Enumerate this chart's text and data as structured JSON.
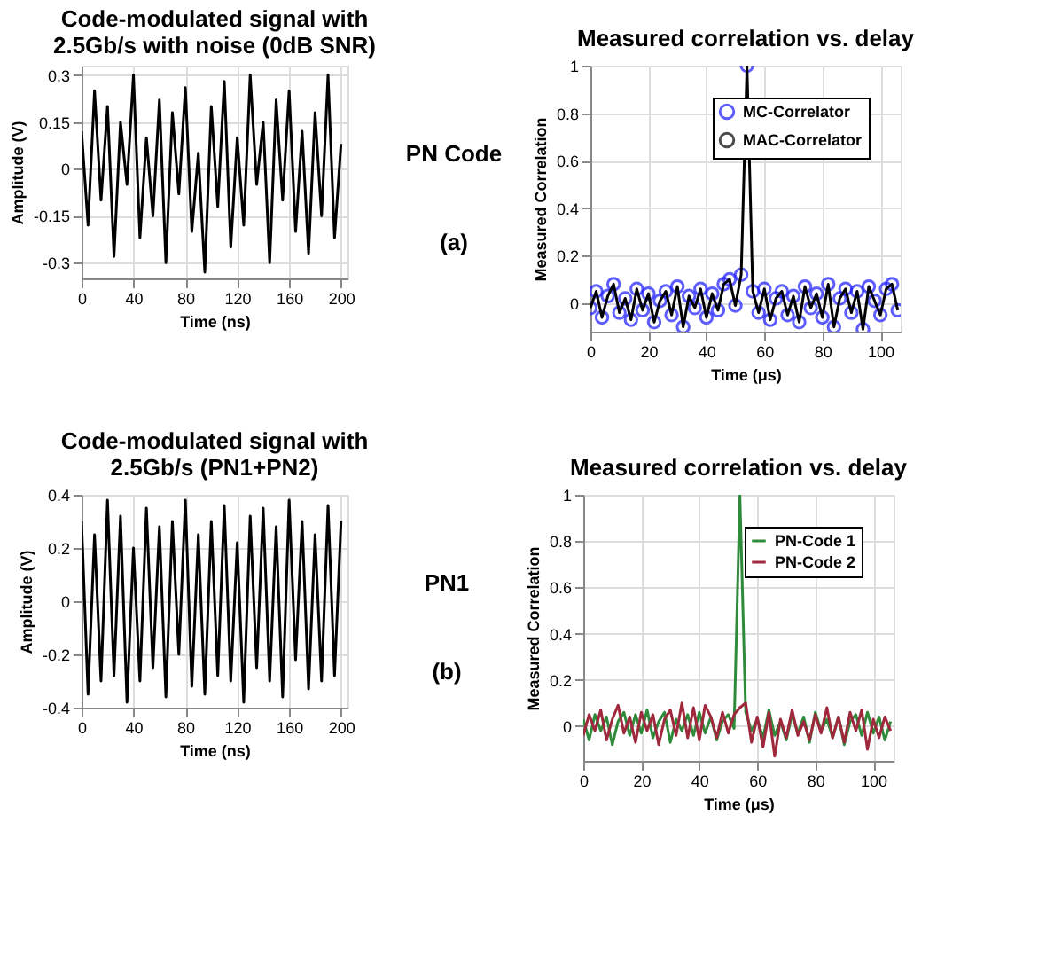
{
  "chart_data": [
    {
      "type": "line",
      "title": "Code-modulated signal with\n2.5Gb/s with noise (0dB SNR)",
      "xlabel": "Time (ns)",
      "ylabel": "Amplitude (V)",
      "xlim": [
        0,
        205
      ],
      "xticks": [
        0,
        40,
        80,
        120,
        160,
        200
      ],
      "ylim": [
        -0.35,
        0.33
      ],
      "yticks": [
        -0.3,
        -0.15,
        0,
        0.15,
        0.3
      ],
      "grid": true,
      "x": [
        0,
        5,
        10,
        15,
        20,
        25,
        30,
        35,
        40,
        45,
        50,
        55,
        60,
        65,
        70,
        75,
        80,
        85,
        90,
        95,
        100,
        105,
        110,
        115,
        120,
        125,
        130,
        135,
        140,
        145,
        150,
        155,
        160,
        165,
        170,
        175,
        180,
        185,
        190,
        195,
        200
      ],
      "series": [
        {
          "color": "#000000",
          "values": [
            0.12,
            -0.18,
            0.25,
            -0.1,
            0.2,
            -0.28,
            0.15,
            -0.05,
            0.3,
            -0.22,
            0.1,
            -0.15,
            0.22,
            -0.3,
            0.18,
            -0.08,
            0.26,
            -0.2,
            0.05,
            -0.33,
            0.2,
            -0.12,
            0.28,
            -0.25,
            0.1,
            -0.18,
            0.3,
            -0.05,
            0.15,
            -0.3,
            0.22,
            -0.1,
            0.25,
            -0.2,
            0.12,
            -0.27,
            0.18,
            -0.15,
            0.3,
            -0.22,
            0.08
          ]
        }
      ]
    },
    {
      "type": "other",
      "annotations": [
        "PN Code",
        "(a)"
      ]
    },
    {
      "type": "line",
      "title": "Measured correlation vs. delay",
      "xlabel": "Time (μs)",
      "ylabel": "Measured Correlation",
      "xlim": [
        0,
        107
      ],
      "xticks": [
        0,
        20,
        40,
        60,
        80,
        100
      ],
      "ylim": [
        -0.12,
        1
      ],
      "yticks": [
        0,
        0.2,
        0.4,
        0.6,
        0.8,
        1
      ],
      "grid": true,
      "legend": "top right",
      "x": [
        0,
        2,
        4,
        6,
        8,
        10,
        12,
        14,
        16,
        18,
        20,
        22,
        24,
        26,
        28,
        30,
        32,
        34,
        36,
        38,
        40,
        42,
        44,
        46,
        48,
        50,
        52,
        54,
        56,
        58,
        60,
        62,
        64,
        66,
        68,
        70,
        72,
        74,
        76,
        78,
        80,
        82,
        84,
        86,
        88,
        90,
        92,
        94,
        96,
        98,
        100,
        102,
        104,
        106
      ],
      "series": [
        {
          "name": "MC-Correlator",
          "type": "scatter",
          "marker": "circle",
          "color": "#1a1aff",
          "values": [
            -0.02,
            0.05,
            -0.06,
            0.03,
            0.08,
            -0.04,
            0.02,
            -0.07,
            0.06,
            -0.03,
            0.04,
            -0.08,
            0.01,
            0.05,
            -0.05,
            0.07,
            -0.1,
            0.03,
            -0.02,
            0.06,
            -0.06,
            0.04,
            -0.03,
            0.08,
            0.1,
            -0.01,
            0.12,
            1,
            0.05,
            -0.04,
            0.06,
            -0.07,
            0.02,
            0.05,
            -0.05,
            0.03,
            -0.08,
            0.07,
            -0.02,
            0.04,
            -0.06,
            0.08,
            -0.1,
            0.02,
            0.06,
            -0.04,
            0.05,
            -0.11,
            0.07,
            0.01,
            -0.05,
            0.06,
            0.08,
            -0.03
          ]
        },
        {
          "name": "MAC-Correlator",
          "type": "line",
          "color": "#000000",
          "values": [
            -0.02,
            0.05,
            -0.06,
            0.03,
            0.08,
            -0.04,
            0.02,
            -0.07,
            0.06,
            -0.03,
            0.04,
            -0.08,
            0.01,
            0.05,
            -0.05,
            0.07,
            -0.1,
            0.03,
            -0.02,
            0.06,
            -0.06,
            0.04,
            -0.03,
            0.08,
            0.1,
            -0.01,
            0.12,
            1,
            0.05,
            -0.04,
            0.06,
            -0.07,
            0.02,
            0.05,
            -0.05,
            0.03,
            -0.08,
            0.07,
            -0.02,
            0.04,
            -0.06,
            0.08,
            -0.1,
            0.02,
            0.06,
            -0.04,
            0.05,
            -0.11,
            0.07,
            0.01,
            -0.05,
            0.06,
            0.08,
            -0.03
          ]
        }
      ]
    },
    {
      "type": "line",
      "title": "Code-modulated signal with\n2.5Gb/s (PN1+PN2)",
      "xlabel": "Time (ns)",
      "ylabel": "Amplitude (V)",
      "xlim": [
        0,
        205
      ],
      "xticks": [
        0,
        40,
        80,
        120,
        160,
        200
      ],
      "ylim": [
        -0.4,
        0.4
      ],
      "yticks": [
        -0.4,
        -0.2,
        0,
        0.2,
        0.4
      ],
      "grid": true,
      "x": [
        0,
        5,
        10,
        15,
        20,
        25,
        30,
        35,
        40,
        45,
        50,
        55,
        60,
        65,
        70,
        75,
        80,
        85,
        90,
        95,
        100,
        105,
        110,
        115,
        120,
        125,
        130,
        135,
        140,
        145,
        150,
        155,
        160,
        165,
        170,
        175,
        180,
        185,
        190,
        195,
        200
      ],
      "series": [
        {
          "color": "#000000",
          "values": [
            0.3,
            -0.35,
            0.25,
            -0.3,
            0.38,
            -0.28,
            0.32,
            -0.38,
            0.2,
            -0.3,
            0.35,
            -0.25,
            0.28,
            -0.36,
            0.3,
            -0.2,
            0.38,
            -0.32,
            0.25,
            -0.35,
            0.3,
            -0.28,
            0.36,
            -0.3,
            0.22,
            -0.38,
            0.32,
            -0.25,
            0.35,
            -0.3,
            0.28,
            -0.36,
            0.38,
            -0.22,
            0.3,
            -0.33,
            0.25,
            -0.3,
            0.36,
            -0.28,
            0.3
          ]
        }
      ]
    },
    {
      "type": "other",
      "annotations": [
        "PN1",
        "(b)"
      ]
    },
    {
      "type": "line",
      "title": "Measured correlation vs. delay",
      "xlabel": "Time (μs)",
      "ylabel": "Measured Correlation",
      "xlim": [
        0,
        107
      ],
      "xticks": [
        0,
        20,
        40,
        60,
        80,
        100
      ],
      "ylim": [
        -0.15,
        1
      ],
      "yticks": [
        0,
        0.2,
        0.4,
        0.6,
        0.8,
        1
      ],
      "grid": true,
      "legend": "top right",
      "x": [
        0,
        2,
        4,
        6,
        8,
        10,
        12,
        14,
        16,
        18,
        20,
        22,
        24,
        26,
        28,
        30,
        32,
        34,
        36,
        38,
        40,
        42,
        44,
        46,
        48,
        50,
        52,
        54,
        56,
        58,
        60,
        62,
        64,
        66,
        68,
        70,
        72,
        74,
        76,
        78,
        80,
        82,
        84,
        86,
        88,
        90,
        92,
        94,
        96,
        98,
        100,
        102,
        104,
        106
      ],
      "series": [
        {
          "name": "PN-Code 1",
          "color": "#2e8b3a",
          "values": [
            0.03,
            -0.06,
            0.05,
            -0.02,
            0.04,
            -0.08,
            0.02,
            0.06,
            -0.04,
            0.05,
            -0.03,
            0.07,
            -0.05,
            0.02,
            0.06,
            -0.07,
            0.03,
            -0.02,
            0.05,
            -0.04,
            0.06,
            -0.03,
            0.04,
            -0.06,
            0.02,
            0.05,
            -0.01,
            1,
            0.06,
            -0.02,
            0.03,
            -0.05,
            0.07,
            -0.04,
            0.02,
            -0.06,
            0.05,
            -0.03,
            0.04,
            -0.07,
            0.06,
            -0.02,
            0.03,
            -0.05,
            0.04,
            -0.08,
            0.02,
            0.05,
            -0.04,
            0.06,
            -0.03,
            0.04,
            -0.06,
            0.02
          ]
        },
        {
          "name": "PN-Code 2",
          "color": "#a0283c",
          "values": [
            -0.04,
            0.05,
            -0.02,
            0.07,
            -0.06,
            0.03,
            0.09,
            -0.03,
            0.04,
            -0.07,
            0.06,
            -0.02,
            0.05,
            -0.08,
            0.03,
            0.07,
            -0.04,
            0.1,
            -0.05,
            0.08,
            -0.06,
            0.09,
            0.04,
            -0.05,
            0.06,
            -0.03,
            0.05,
            0.08,
            0.1,
            -0.07,
            0.04,
            -0.09,
            0.06,
            -0.13,
            0.03,
            -0.05,
            0.07,
            -0.04,
            0.02,
            -0.06,
            0.05,
            -0.03,
            0.08,
            -0.05,
            0.04,
            -0.07,
            0.06,
            -0.02,
            0.07,
            -0.1,
            0.03,
            -0.05,
            0.04,
            -0.02
          ]
        }
      ]
    }
  ]
}
